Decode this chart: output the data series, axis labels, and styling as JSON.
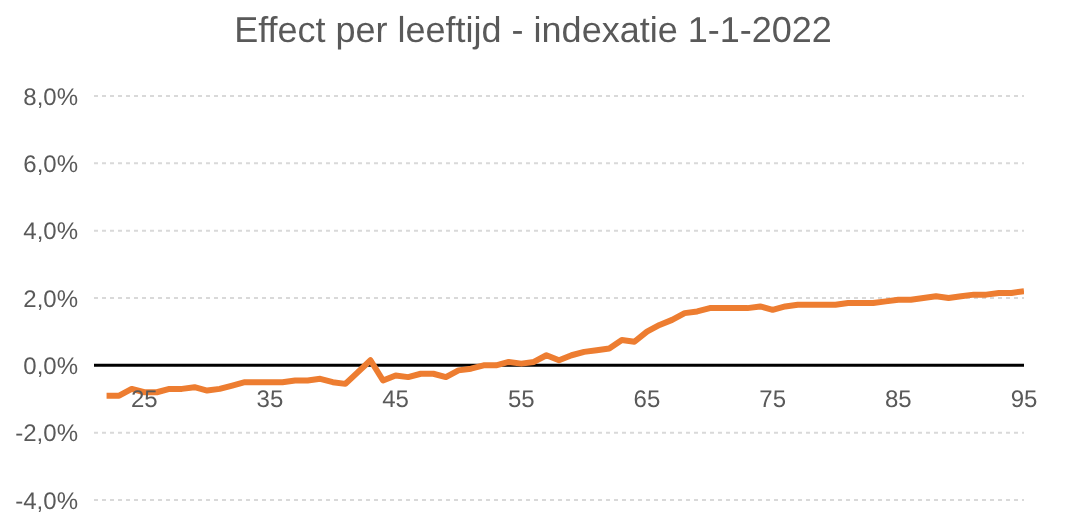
{
  "chart_data": {
    "type": "line",
    "title": "Effect per leeftijd - indexatie 1-1-2022",
    "x": [
      22,
      23,
      24,
      25,
      26,
      27,
      28,
      29,
      30,
      31,
      32,
      33,
      34,
      35,
      36,
      37,
      38,
      39,
      40,
      41,
      42,
      43,
      44,
      45,
      46,
      47,
      48,
      49,
      50,
      51,
      52,
      53,
      54,
      55,
      56,
      57,
      58,
      59,
      60,
      61,
      62,
      63,
      64,
      65,
      66,
      67,
      68,
      69,
      70,
      71,
      72,
      73,
      74,
      75,
      76,
      77,
      78,
      79,
      80,
      81,
      82,
      83,
      84,
      85,
      86,
      87,
      88,
      89,
      90,
      91,
      92,
      93,
      94,
      95
    ],
    "series": [
      {
        "color": "#ed7d31",
        "values": [
          -0.9,
          -0.9,
          -0.7,
          -0.8,
          -0.8,
          -0.7,
          -0.7,
          -0.65,
          -0.75,
          -0.7,
          -0.6,
          -0.5,
          -0.5,
          -0.5,
          -0.5,
          -0.45,
          -0.45,
          -0.4,
          -0.5,
          -0.55,
          -0.2,
          0.15,
          -0.45,
          -0.3,
          -0.35,
          -0.25,
          -0.25,
          -0.35,
          -0.15,
          -0.1,
          0.0,
          0.0,
          0.1,
          0.05,
          0.1,
          0.3,
          0.15,
          0.3,
          0.4,
          0.45,
          0.5,
          0.75,
          0.7,
          1.0,
          1.2,
          1.35,
          1.55,
          1.6,
          1.7,
          1.7,
          1.7,
          1.7,
          1.75,
          1.65,
          1.75,
          1.8,
          1.8,
          1.8,
          1.8,
          1.85,
          1.85,
          1.85,
          1.9,
          1.95,
          1.95,
          2.0,
          2.05,
          2.0,
          2.05,
          2.1,
          2.1,
          2.15,
          2.15,
          2.2
        ]
      }
    ],
    "xlim": [
      21,
      95
    ],
    "xticks": [
      25,
      35,
      45,
      55,
      65,
      75,
      85,
      95
    ],
    "ylim": [
      -4,
      8
    ],
    "yticks": [
      {
        "value": -4,
        "label": "-4,0%"
      },
      {
        "value": -2,
        "label": "-2,0%"
      },
      {
        "value": 0,
        "label": "0,0%"
      },
      {
        "value": 2,
        "label": "2,0%"
      },
      {
        "value": 4,
        "label": "4,0%"
      },
      {
        "value": 6,
        "label": "6,0%"
      },
      {
        "value": 8,
        "label": "8,0%"
      }
    ],
    "grid": "y",
    "marker": "none",
    "line_style": "solid"
  }
}
